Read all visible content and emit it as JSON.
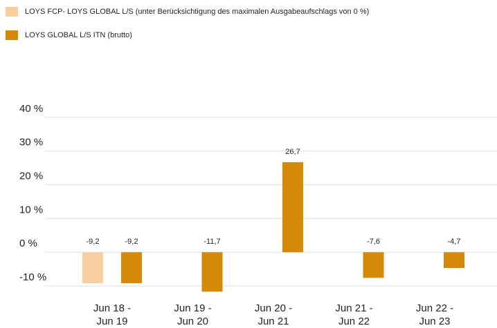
{
  "chart_data": {
    "type": "bar",
    "categories": [
      "Jun 18 - Jun 19",
      "Jun 19 - Jun 20",
      "Jun 20 - Jun 21",
      "Jun 21 - Jun 22",
      "Jun 22 - Jun 23"
    ],
    "series": [
      {
        "name": "LOYS FCP- LOYS GLOBAL L/S (unter Berücksichtigung des maximalen Ausgabeaufschlags von 0 %)",
        "color": "#f7cf9f",
        "values": [
          -9.2,
          null,
          null,
          null,
          null
        ],
        "value_labels": [
          "-9,2",
          null,
          null,
          null,
          null
        ]
      },
      {
        "name": "LOYS GLOBAL L/S ITN (brutto)",
        "color": "#d48a06",
        "values": [
          -9.2,
          -11.7,
          26.7,
          -7.6,
          -4.7
        ],
        "value_labels": [
          "-9,2",
          "-11,7",
          "26,7",
          "-7,6",
          "-4,7"
        ]
      }
    ],
    "ylim": [
      -15,
      45
    ],
    "yticks": [
      {
        "value": -10,
        "label": "-10 %"
      },
      {
        "value": 0,
        "label": "0 %"
      },
      {
        "value": 10,
        "label": "10 %"
      },
      {
        "value": 20,
        "label": "20 %"
      },
      {
        "value": 30,
        "label": "30 %"
      },
      {
        "value": 40,
        "label": "40 %"
      }
    ],
    "grid": true,
    "legend": "top-left"
  }
}
